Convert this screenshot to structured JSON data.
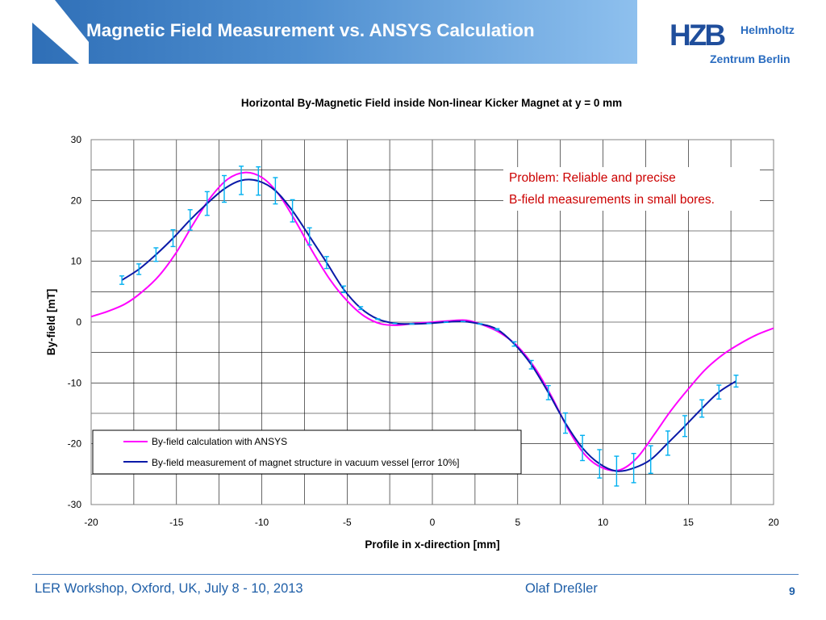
{
  "header": {
    "title": "Magnetic Field Measurement vs. ANSYS Calculation",
    "logo_text": "HZB",
    "logo_line1": "Helmholtz",
    "logo_line2": "Zentrum Berlin"
  },
  "footer": {
    "left": "LER Workshop, Oxford, UK, July 8 - 10, 2013",
    "author": "Olaf Dreßler",
    "page": "9"
  },
  "note": {
    "line1": "Problem: Reliable and precise",
    "line2": "B-field measurements in small bores."
  },
  "colors": {
    "header": "#3b7cc4",
    "calc": "#ff00ff",
    "meas": "#0a1aa8",
    "errbar": "#00b0f0",
    "note": "#cc0000"
  },
  "chart_data": {
    "type": "line",
    "title": "Horizontal By-Magnetic Field inside Non-linear Kicker Magnet at y = 0 mm",
    "xlabel": "Profile in x-direction [mm]",
    "ylabel": "By-field [mT]",
    "xlim": [
      -20,
      20
    ],
    "ylim": [
      -30,
      30
    ],
    "xticks": [
      "-20",
      "-15",
      "-10",
      "-5",
      "0",
      "5",
      "10",
      "15",
      "20"
    ],
    "yticks": [
      "30",
      "20",
      "10",
      "0",
      "-10",
      "-20",
      "-30"
    ],
    "grid": true,
    "legend_position": "lower-left",
    "series": [
      {
        "name": "By-field calculation with ANSYS",
        "x": [
          -20,
          -19,
          -18,
          -17,
          -16,
          -15,
          -14,
          -13,
          -12,
          -11,
          -10,
          -9,
          -8,
          -7,
          -6,
          -5,
          -4,
          -3,
          -2,
          -1,
          0,
          1,
          2,
          3,
          4,
          5,
          6,
          7,
          8,
          9,
          10,
          11,
          12,
          13,
          14,
          15,
          16,
          17,
          18,
          19,
          20
        ],
        "y": [
          0.9,
          1.8,
          3.0,
          5.0,
          7.7,
          11.5,
          16.2,
          20.5,
          23.5,
          24.6,
          23.8,
          21.0,
          16.5,
          11.5,
          7.0,
          3.5,
          1.0,
          -0.3,
          -0.5,
          -0.2,
          0.0,
          0.2,
          0.3,
          -0.5,
          -1.8,
          -4.0,
          -7.5,
          -12.3,
          -17.8,
          -22.0,
          -24.0,
          -24.3,
          -22.3,
          -18.5,
          -14.5,
          -11.0,
          -7.8,
          -5.4,
          -3.6,
          -2.1,
          -1.0
        ]
      },
      {
        "name": "By-field measurement of magnet structure in vacuum vessel [error 10%]",
        "x": [
          -18.2,
          -17.2,
          -16.2,
          -15.2,
          -14.2,
          -13.2,
          -12.2,
          -11.2,
          -10.2,
          -9.2,
          -8.2,
          -7.2,
          -6.2,
          -5.2,
          -4.2,
          -3.2,
          -2.2,
          -1.2,
          -0.2,
          0.8,
          1.8,
          2.8,
          3.8,
          4.8,
          5.8,
          6.8,
          7.8,
          8.8,
          9.8,
          10.8,
          11.8,
          12.8,
          13.8,
          14.8,
          15.8,
          16.8,
          17.8
        ],
        "y": [
          6.9,
          8.7,
          11.1,
          13.8,
          16.8,
          19.5,
          21.9,
          23.3,
          23.2,
          21.6,
          18.3,
          14.1,
          9.8,
          5.4,
          2.3,
          0.5,
          -0.2,
          -0.3,
          -0.2,
          0.0,
          0.1,
          -0.3,
          -1.2,
          -3.6,
          -7.0,
          -11.6,
          -16.6,
          -20.7,
          -23.3,
          -24.5,
          -24.0,
          -22.6,
          -19.9,
          -17.1,
          -14.2,
          -11.5,
          -9.7
        ],
        "errors": [
          0.69,
          0.87,
          1.11,
          1.38,
          1.68,
          1.95,
          2.19,
          2.33,
          2.32,
          2.16,
          1.83,
          1.41,
          0.98,
          0.54,
          0.23,
          0.05,
          0.02,
          0.03,
          0.02,
          0.0,
          0.01,
          0.03,
          0.12,
          0.36,
          0.7,
          1.16,
          1.66,
          2.07,
          2.33,
          2.45,
          2.4,
          2.26,
          1.99,
          1.71,
          1.42,
          1.15,
          0.97
        ]
      }
    ]
  }
}
